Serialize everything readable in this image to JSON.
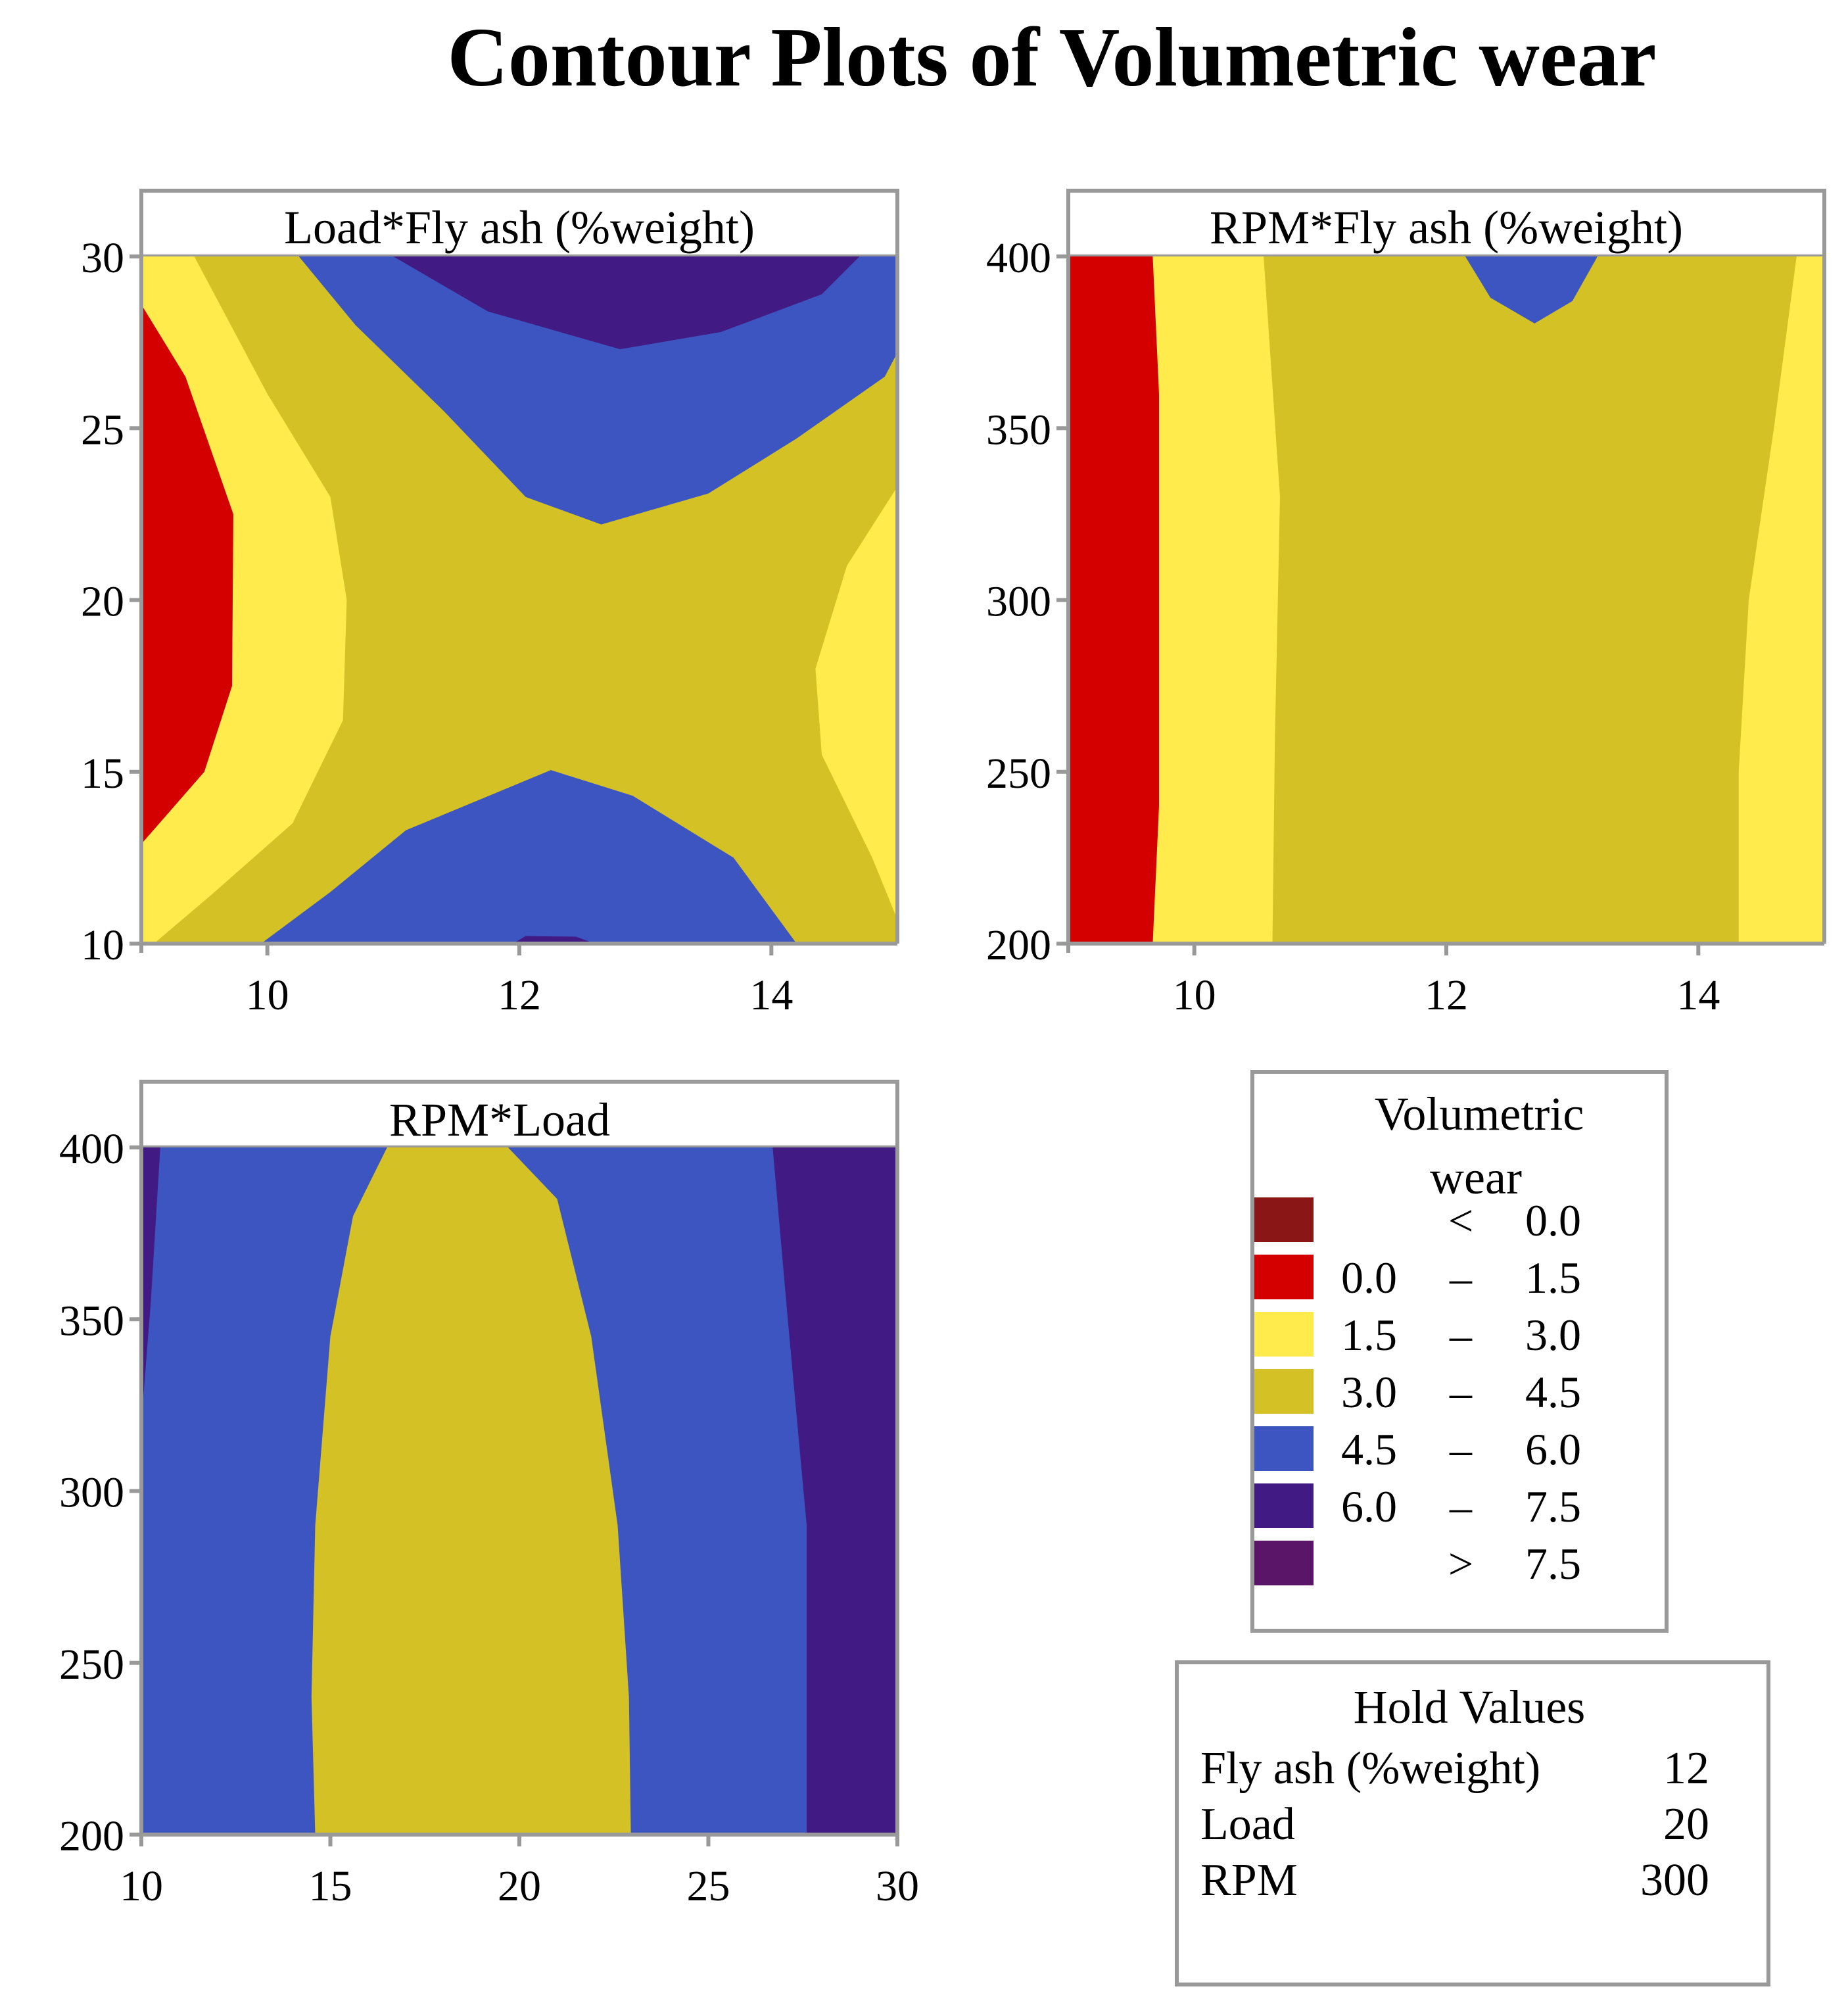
{
  "title": "Contour Plots of Volumetric wear",
  "colors": {
    "lt0": "#8B1616",
    "c0_15": "#D40000",
    "c15_30": "#FFEB4C",
    "c30_45": "#D4C125",
    "c45_60": "#3C55C0",
    "c60_75": "#411B83",
    "gt75": "#5A1468",
    "frame": "#999999"
  },
  "legend": {
    "title_line1": "Volumetric",
    "title_line2": "wear",
    "rows": [
      {
        "lo": "",
        "sep": "<",
        "hi": "0.0",
        "color_key": "lt0"
      },
      {
        "lo": "0.0",
        "sep": "–",
        "hi": "1.5",
        "color_key": "c0_15"
      },
      {
        "lo": "1.5",
        "sep": "–",
        "hi": "3.0",
        "color_key": "c15_30"
      },
      {
        "lo": "3.0",
        "sep": "–",
        "hi": "4.5",
        "color_key": "c30_45"
      },
      {
        "lo": "4.5",
        "sep": "–",
        "hi": "6.0",
        "color_key": "c45_60"
      },
      {
        "lo": "6.0",
        "sep": "–",
        "hi": "7.5",
        "color_key": "c60_75"
      },
      {
        "lo": "",
        "sep": ">",
        "hi": "7.5",
        "color_key": "gt75"
      }
    ]
  },
  "hold_values": {
    "title": "Hold Values",
    "rows": [
      {
        "label": "Fly ash (%weight)",
        "value": "12"
      },
      {
        "label": "Load",
        "value": "20"
      },
      {
        "label": "RPM",
        "value": "300"
      }
    ]
  },
  "chart_data": [
    {
      "type": "contour",
      "title": "Load*Fly ash (%weight)",
      "xlim": [
        9,
        15
      ],
      "ylim": [
        10,
        30
      ],
      "xticks": [
        10,
        12,
        14
      ],
      "yticks": [
        10,
        15,
        20,
        25,
        30
      ],
      "regions": [
        {
          "level": "3.0 – 4.5",
          "color_key": "c30_45",
          "points": [
            [
              9,
              10
            ],
            [
              15,
              10
            ],
            [
              15,
              30
            ],
            [
              9,
              30
            ]
          ]
        },
        {
          "level": "1.5 – 3.0",
          "color_key": "c15_30",
          "points": [
            [
              9,
              10
            ],
            [
              9.1,
              10
            ],
            [
              9.55,
              11.4
            ],
            [
              10.2,
              13.5
            ],
            [
              10.6,
              16.5
            ],
            [
              10.63,
              20
            ],
            [
              10.5,
              23
            ],
            [
              10,
              26
            ],
            [
              9.42,
              30
            ],
            [
              9,
              30
            ]
          ]
        },
        {
          "level": "0.0 – 1.5",
          "color_key": "c0_15",
          "points": [
            [
              9,
              12.9
            ],
            [
              9.5,
              15
            ],
            [
              9.72,
              17.5
            ],
            [
              9.73,
              22.5
            ],
            [
              9.35,
              26.5
            ],
            [
              9,
              28.6
            ]
          ]
        },
        {
          "level": "1.5 – 3.0",
          "color_key": "c15_30",
          "points": [
            [
              15,
              23.3
            ],
            [
              14.6,
              21
            ],
            [
              14.35,
              18
            ],
            [
              14.4,
              15.5
            ],
            [
              14.8,
              12.5
            ],
            [
              15,
              10.7
            ]
          ]
        },
        {
          "level": "4.5 – 6.0",
          "color_key": "c45_60",
          "points": [
            [
              9.95,
              10
            ],
            [
              10.5,
              11.5
            ],
            [
              11.1,
              13.3
            ],
            [
              12.25,
              15.05
            ],
            [
              12.9,
              14.3
            ],
            [
              13.7,
              12.5
            ],
            [
              14.2,
              10
            ]
          ]
        },
        {
          "level": "6.0 – 7.5",
          "color_key": "c60_75",
          "points": [
            [
              11.95,
              10
            ],
            [
              12.05,
              10.22
            ],
            [
              12.45,
              10.2
            ],
            [
              12.6,
              10
            ]
          ]
        },
        {
          "level": "4.5 – 6.0",
          "color_key": "c45_60",
          "points": [
            [
              10.25,
              30
            ],
            [
              10.7,
              28
            ],
            [
              11.4,
              25.5
            ],
            [
              12.05,
              23
            ],
            [
              12.65,
              22.2
            ],
            [
              13.5,
              23.1
            ],
            [
              14.2,
              24.7
            ],
            [
              14.9,
              26.5
            ],
            [
              15,
              27.2
            ],
            [
              15,
              30
            ]
          ]
        },
        {
          "level": "6.0 – 7.5",
          "color_key": "c60_75",
          "points": [
            [
              11.0,
              30
            ],
            [
              11.75,
              28.4
            ],
            [
              12.8,
              27.3
            ],
            [
              13.6,
              27.8
            ],
            [
              14.4,
              28.9
            ],
            [
              14.7,
              30
            ]
          ]
        }
      ]
    },
    {
      "type": "contour",
      "title": "RPM*Fly ash (%weight)",
      "xlim": [
        9,
        15
      ],
      "ylim": [
        200,
        400
      ],
      "xticks": [
        10,
        12,
        14
      ],
      "yticks": [
        200,
        250,
        300,
        350,
        400
      ],
      "regions": [
        {
          "level": "3.0 – 4.5",
          "color_key": "c30_45",
          "points": [
            [
              9,
              200
            ],
            [
              15,
              200
            ],
            [
              15,
              400
            ],
            [
              9,
              400
            ]
          ]
        },
        {
          "level": "1.5 – 3.0",
          "color_key": "c15_30",
          "points": [
            [
              9,
              200
            ],
            [
              10.62,
              200
            ],
            [
              10.64,
              260
            ],
            [
              10.68,
              330
            ],
            [
              10.55,
              400
            ],
            [
              9,
              400
            ]
          ]
        },
        {
          "level": "0.0 – 1.5",
          "color_key": "c0_15",
          "points": [
            [
              9,
              200
            ],
            [
              9.67,
              200
            ],
            [
              9.72,
              240
            ],
            [
              9.72,
              360
            ],
            [
              9.67,
              400
            ],
            [
              9,
              400
            ]
          ]
        },
        {
          "level": "1.5 – 3.0",
          "color_key": "c15_30",
          "points": [
            [
              14.32,
              200
            ],
            [
              14.32,
              250
            ],
            [
              14.4,
              300
            ],
            [
              14.6,
              350
            ],
            [
              14.78,
              400
            ],
            [
              15,
              400
            ],
            [
              15,
              200
            ]
          ]
        },
        {
          "level": "4.5 – 6.0",
          "color_key": "c45_60",
          "points": [
            [
              12.15,
              400
            ],
            [
              12.35,
              388
            ],
            [
              12.7,
              380.5
            ],
            [
              13.0,
              387
            ],
            [
              13.2,
              400
            ]
          ]
        }
      ]
    },
    {
      "type": "contour",
      "title": "RPM*Load",
      "xlim": [
        10,
        30
      ],
      "ylim": [
        200,
        400
      ],
      "xticks": [
        10,
        15,
        20,
        25,
        30
      ],
      "yticks": [
        200,
        250,
        300,
        350,
        400
      ],
      "regions": [
        {
          "level": "4.5 – 6.0",
          "color_key": "c45_60",
          "points": [
            [
              10,
              200
            ],
            [
              30,
              200
            ],
            [
              30,
              400
            ],
            [
              10,
              400
            ]
          ]
        },
        {
          "level": "6.0 – 7.5",
          "color_key": "c60_75",
          "points": [
            [
              27.6,
              200
            ],
            [
              27.6,
              290
            ],
            [
              27.1,
              350
            ],
            [
              26.7,
              400
            ],
            [
              30,
              400
            ],
            [
              30,
              200
            ]
          ]
        },
        {
          "level": "6.0 – 7.5",
          "color_key": "c60_75",
          "points": [
            [
              10,
              320
            ],
            [
              10.25,
              355
            ],
            [
              10.5,
              400
            ],
            [
              10,
              400
            ]
          ]
        },
        {
          "level": "3.0 – 4.5",
          "color_key": "c30_45",
          "points": [
            [
              14.6,
              200
            ],
            [
              14.5,
              240
            ],
            [
              14.6,
              290
            ],
            [
              15.0,
              345
            ],
            [
              15.6,
              380
            ],
            [
              16.5,
              400
            ],
            [
              19.7,
              400
            ],
            [
              21.0,
              385
            ],
            [
              21.9,
              345
            ],
            [
              22.6,
              290
            ],
            [
              22.9,
              240
            ],
            [
              22.95,
              200
            ]
          ]
        }
      ]
    }
  ]
}
